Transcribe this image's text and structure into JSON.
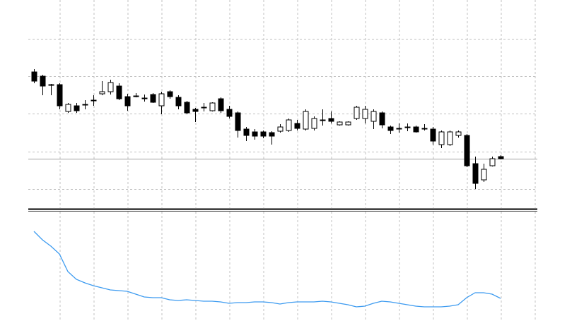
{
  "chart_data": [
    {
      "type": "candlestick",
      "color_up": "#ffffff",
      "color_down": "#000000",
      "edge_color": "#000000",
      "ylim": [
        0,
        295
      ],
      "yticks": [
        27,
        80,
        134,
        187,
        240
      ],
      "grid": true,
      "open": [
        193,
        187,
        175,
        175,
        137,
        145,
        147,
        153,
        162,
        165,
        173,
        158,
        159,
        156,
        161,
        145,
        165,
        157,
        150,
        140,
        143,
        138,
        155,
        140,
        135,
        112,
        108,
        108,
        107,
        109,
        110,
        120,
        112,
        113,
        125,
        127,
        118,
        118,
        127,
        127,
        123,
        135,
        115,
        113,
        115,
        115,
        113,
        112,
        90,
        90,
        103,
        103,
        63,
        40,
        60,
        73
      ],
      "high": [
        197,
        189,
        176,
        177,
        149,
        149,
        153,
        160,
        180,
        182,
        177,
        162,
        163,
        161,
        163,
        165,
        167,
        160,
        152,
        142,
        149,
        150,
        157,
        145,
        137,
        115,
        112,
        110,
        109,
        119,
        127,
        125,
        140,
        130,
        140,
        137,
        123,
        123,
        145,
        145,
        140,
        137,
        117,
        120,
        120,
        117,
        119,
        115,
        110,
        110,
        110,
        105,
        73,
        63,
        73,
        75
      ],
      "low": [
        177,
        160,
        160,
        140,
        135,
        135,
        140,
        145,
        160,
        161,
        153,
        138,
        157,
        151,
        149,
        133,
        155,
        140,
        133,
        122,
        137,
        137,
        135,
        127,
        100,
        95,
        97,
        99,
        90,
        107,
        108,
        110,
        110,
        110,
        117,
        120,
        117,
        117,
        125,
        120,
        112,
        113,
        105,
        107,
        109,
        107,
        110,
        90,
        85,
        88,
        100,
        58,
        27,
        37,
        59,
        69
      ],
      "close": [
        180,
        173,
        174,
        145,
        147,
        138,
        146,
        152,
        165,
        178,
        155,
        145,
        158,
        155,
        150,
        162,
        158,
        145,
        135,
        137,
        142,
        149,
        138,
        130,
        110,
        103,
        102,
        102,
        102,
        115,
        125,
        113,
        137,
        127,
        124,
        123,
        122,
        122,
        143,
        140,
        137,
        118,
        110,
        112,
        114,
        108,
        112,
        95,
        108,
        108,
        108,
        60,
        35,
        55,
        70,
        70
      ]
    },
    {
      "type": "line",
      "color": "#3d9bf0",
      "ylim": [
        0,
        155
      ],
      "values": [
        127,
        115,
        106,
        95,
        70,
        59,
        54,
        50,
        47,
        44,
        43,
        42,
        38,
        34,
        33,
        33,
        30,
        29,
        30,
        29,
        28,
        28,
        27,
        25,
        26,
        26,
        27,
        27,
        26,
        24,
        26,
        27,
        27,
        27,
        28,
        27,
        25,
        23,
        20,
        21,
        25,
        28,
        27,
        25,
        23,
        21,
        20,
        20,
        20,
        21,
        23,
        33,
        40,
        40,
        38,
        32
      ]
    }
  ]
}
